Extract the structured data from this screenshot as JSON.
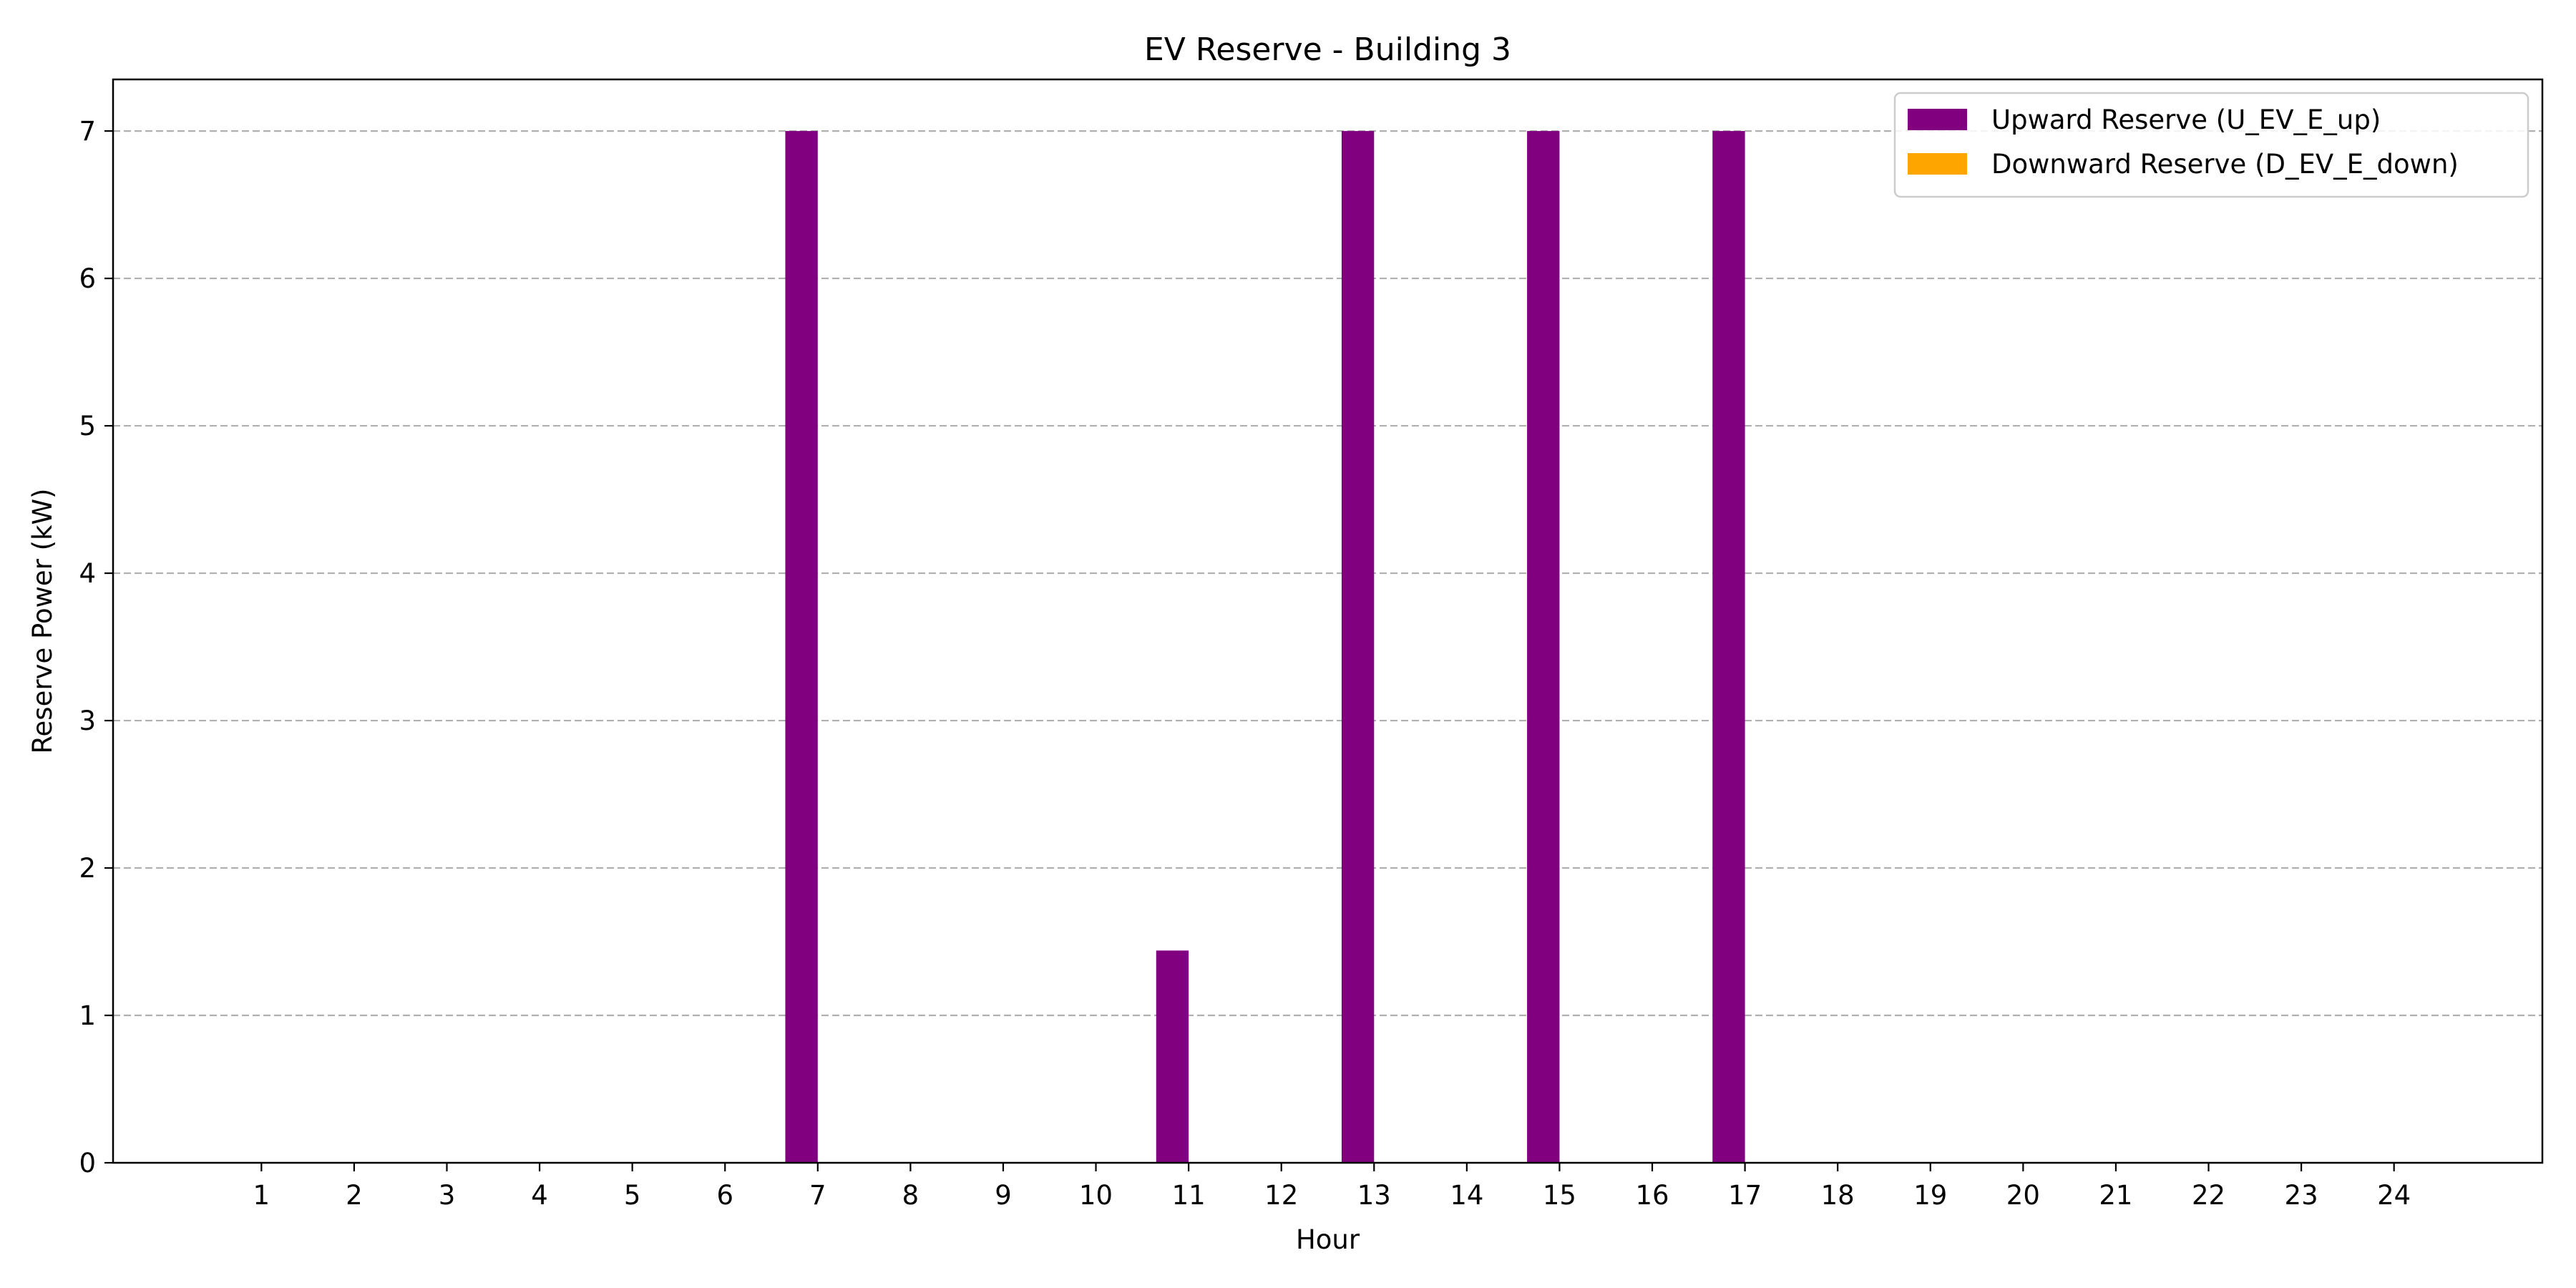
{
  "chart_data": {
    "type": "bar",
    "title": "EV Reserve - Building 3",
    "xlabel": "Hour",
    "ylabel": "Reserve Power (kW)",
    "categories": [
      1,
      2,
      3,
      4,
      5,
      6,
      7,
      8,
      9,
      10,
      11,
      12,
      13,
      14,
      15,
      16,
      17,
      18,
      19,
      20,
      21,
      22,
      23,
      24
    ],
    "xlim": [
      -0.6,
      25.6
    ],
    "ylim": [
      0,
      7.35
    ],
    "yticks": [
      0,
      1,
      2,
      3,
      4,
      5,
      6,
      7
    ],
    "grid": "y-dashed",
    "legend_position": "top-right",
    "series": [
      {
        "name": "Upward Reserve (U_EV_E_up)",
        "color": "#800080",
        "values": [
          0,
          0,
          0,
          0,
          0,
          0,
          7,
          0,
          0,
          0,
          1.44,
          0,
          7,
          0,
          7,
          0,
          7,
          0,
          0,
          0,
          0,
          0,
          0,
          0
        ]
      },
      {
        "name": "Downward Reserve (D_EV_E_down)",
        "color": "#ffa500",
        "values": [
          0,
          0,
          0,
          0,
          0,
          0,
          0,
          0,
          0,
          0,
          0,
          0,
          0,
          0,
          0,
          0,
          0,
          0,
          0,
          0,
          0,
          0,
          0,
          0
        ]
      }
    ]
  }
}
